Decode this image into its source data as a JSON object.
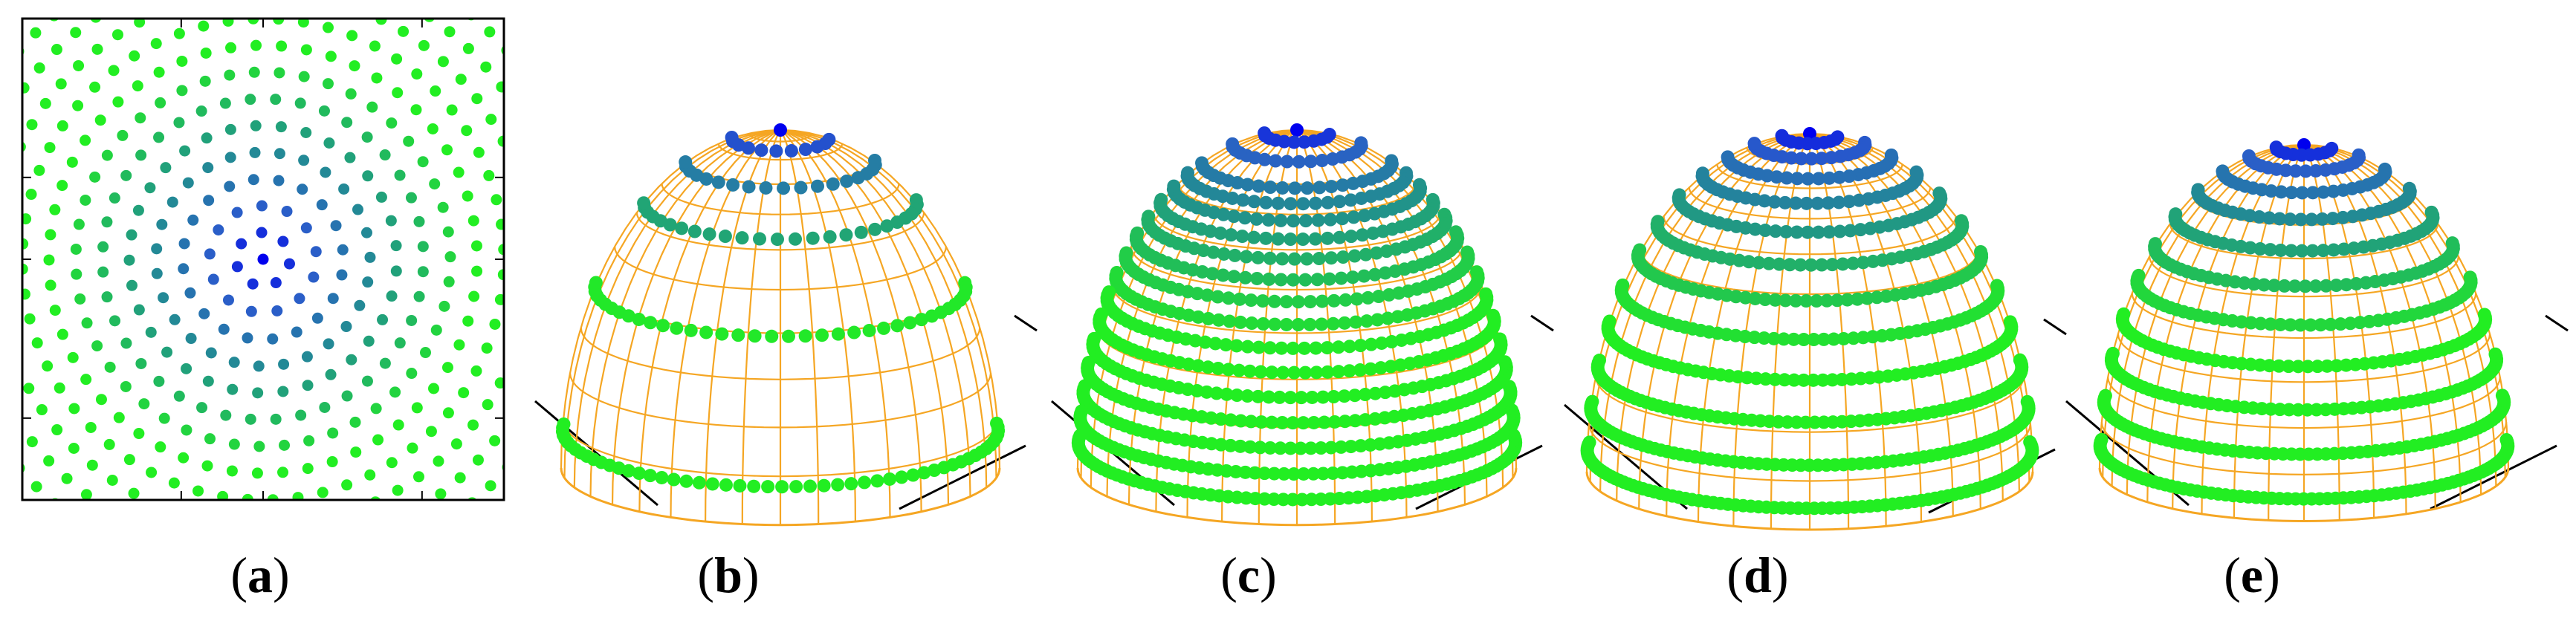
{
  "panels": [
    {
      "id": "a",
      "label": "a",
      "view": "top",
      "rings": 14
    },
    {
      "id": "b",
      "label": "b",
      "view": "hemisphere",
      "rings": [
        0,
        2,
        4,
        6,
        9,
        13
      ]
    },
    {
      "id": "c",
      "label": "c",
      "view": "hemisphere",
      "rings": [
        0,
        2,
        4,
        6,
        7,
        8,
        9,
        10,
        11,
        12,
        13,
        14,
        15,
        16,
        17,
        18,
        19,
        20
      ]
    },
    {
      "id": "d",
      "label": "d",
      "view": "hemisphere",
      "rings": [
        0,
        2,
        4,
        6,
        8,
        10,
        12,
        14,
        16,
        18,
        20,
        22,
        24
      ]
    },
    {
      "id": "e",
      "label": "e",
      "view": "hemisphere",
      "rings": [
        0,
        2,
        4,
        6,
        8,
        10,
        12,
        14,
        16,
        18,
        20,
        22
      ]
    }
  ],
  "colors": {
    "mesh": "#f5a623",
    "center": "#0000ee",
    "inner": "#2a5ec8",
    "mid": "#21918c",
    "outer": "#22ee22",
    "frame": "#000000"
  },
  "captions": {
    "a": {
      "open": "(",
      "letter": "a",
      "close": ")"
    },
    "b": {
      "open": "(",
      "letter": "b",
      "close": ")"
    },
    "c": {
      "open": "(",
      "letter": "c",
      "close": ")"
    },
    "d": {
      "open": "(",
      "letter": "d",
      "close": ")"
    },
    "e": {
      "open": "(",
      "letter": "e",
      "close": ")"
    }
  }
}
